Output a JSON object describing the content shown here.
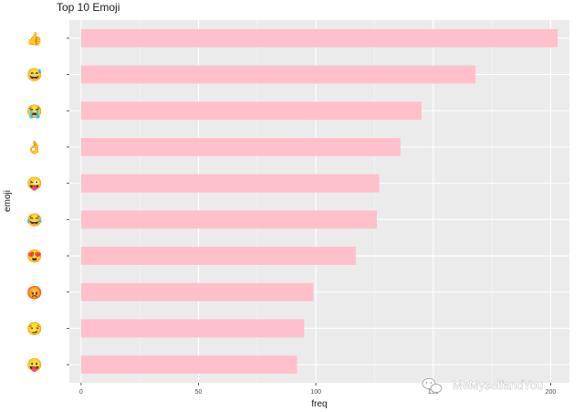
{
  "chart_data": {
    "type": "bar",
    "orientation": "horizontal",
    "title": "Top 10 Emoji",
    "xlabel": "freq",
    "ylabel": "emoji",
    "categories": [
      "thumbs-up",
      "grinning-squinting-sweat",
      "loudly-crying",
      "ok-hand",
      "winking-tongue",
      "tears-of-joy",
      "heart-eyes",
      "pouting-angry",
      "smirking",
      "tongue-out"
    ],
    "values": [
      203,
      168,
      145,
      136,
      127,
      126,
      117,
      99,
      95,
      92
    ],
    "xlim": [
      -5,
      208
    ],
    "xticks": [
      0,
      50,
      100,
      150,
      200
    ],
    "grid": true,
    "legend": "none",
    "bar_color": "#ffc0cb",
    "panel_color": "#ebebeb"
  },
  "emoji_icons": [
    {
      "icon": "thumbs-up-icon",
      "glyph": "👍",
      "color": "#f5b82e"
    },
    {
      "icon": "grinning-sweat-icon",
      "glyph": "😅",
      "color": "#f5c33b"
    },
    {
      "icon": "crying-face-icon",
      "glyph": "😭",
      "color": "#f5c33b"
    },
    {
      "icon": "ok-hand-icon",
      "glyph": "👌",
      "color": "#f5b82e"
    },
    {
      "icon": "winking-tongue-icon",
      "glyph": "😜",
      "color": "#f5c33b"
    },
    {
      "icon": "tears-of-joy-icon",
      "glyph": "😂",
      "color": "#f5c33b"
    },
    {
      "icon": "heart-eyes-icon",
      "glyph": "😍",
      "color": "#f5c33b"
    },
    {
      "icon": "angry-face-icon",
      "glyph": "😡",
      "color": "#e74c3c"
    },
    {
      "icon": "smirking-face-icon",
      "glyph": "😏",
      "color": "#f5c33b"
    },
    {
      "icon": "tongue-out-icon",
      "glyph": "😛",
      "color": "#f5c33b"
    }
  ],
  "watermark": {
    "text": "MeMyselfandYou",
    "icon": "wechat-icon"
  }
}
